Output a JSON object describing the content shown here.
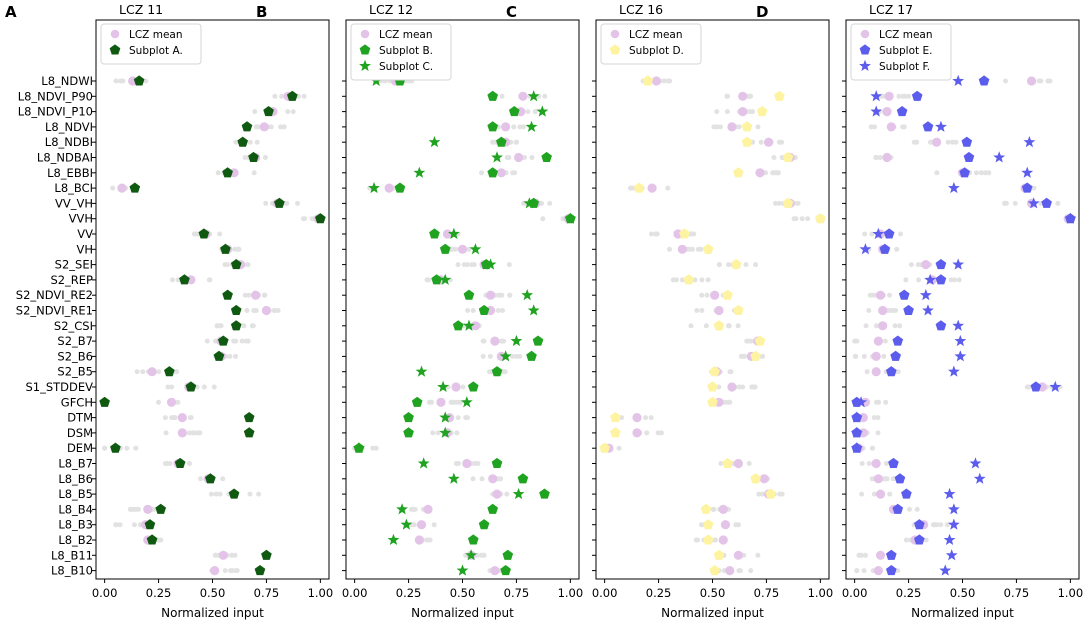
{
  "chart_data": {
    "type": "scatter",
    "x_axis_label": "Normalized input",
    "x_ticks": [
      "0.00",
      "0.25",
      "0.50",
      "0.75",
      "1.00"
    ],
    "xlim": [
      -0.04,
      1.04
    ],
    "features": [
      "L8_NDWI",
      "L8_NDVI_P90",
      "L8_NDVI_P10",
      "L8_NDVI",
      "L8_NDBI",
      "L8_NDBAI",
      "L8_EBBI",
      "L8_BCI",
      "VV_VH",
      "VVH",
      "VV",
      "VH",
      "S2_SEI",
      "S2_REP",
      "S2_NDVI_RE2",
      "S2_NDVI_RE1",
      "S2_CSI",
      "S2_B7",
      "S2_B6",
      "S2_B5",
      "S1_STDDEV",
      "GFCH",
      "DTM",
      "DSM",
      "DEM",
      "L8_B7",
      "L8_B6",
      "L8_B5",
      "L8_B4",
      "L8_B3",
      "L8_B2",
      "L8_B11",
      "L8_B10"
    ],
    "panels": [
      {
        "letter": "A",
        "title": "LCZ 11",
        "legend": [
          {
            "label": "LCZ mean",
            "marker": "circle",
            "color": "#e3c4e8"
          },
          {
            "label": "Subplot A.",
            "marker": "pentagon",
            "color": "#0f5a10"
          }
        ],
        "lcz_mean": [
          0.13,
          0.85,
          0.78,
          0.74,
          0.64,
          0.7,
          0.6,
          0.08,
          0.8,
          0.99,
          0.47,
          0.57,
          0.63,
          0.4,
          0.7,
          0.75,
          0.61,
          0.54,
          0.54,
          0.22,
          0.39,
          0.31,
          0.36,
          0.36,
          0.05,
          0.34,
          0.48,
          0.6,
          0.2,
          0.19,
          0.2,
          0.55,
          0.51
        ],
        "series": [
          {
            "name": "Subplot A.",
            "marker": "pentagon",
            "color": "#0f5a10",
            "values": [
              0.16,
              0.87,
              0.76,
              0.66,
              0.64,
              0.69,
              0.57,
              0.14,
              0.81,
              1.0,
              0.46,
              0.56,
              0.61,
              0.37,
              0.57,
              0.61,
              0.61,
              0.55,
              0.53,
              0.3,
              0.4,
              0.0,
              0.67,
              0.67,
              0.05,
              0.35,
              0.49,
              0.6,
              0.26,
              0.21,
              0.22,
              0.75,
              0.72
            ]
          }
        ]
      },
      {
        "letter": "B",
        "title": "LCZ 12",
        "legend": [
          {
            "label": "LCZ mean",
            "marker": "circle",
            "color": "#e3c4e8"
          },
          {
            "label": "Subplot B.",
            "marker": "pentagon",
            "color": "#20a320"
          },
          {
            "label": "Subplot C.",
            "marker": "star",
            "color": "#20a320"
          }
        ],
        "lcz_mean": [
          0.19,
          0.78,
          0.77,
          0.7,
          0.7,
          0.76,
          0.68,
          0.16,
          0.84,
          0.99,
          0.43,
          0.5,
          0.6,
          0.4,
          0.63,
          0.63,
          0.56,
          0.65,
          0.68,
          0.66,
          0.47,
          0.4,
          0.44,
          0.43,
          0.02,
          0.52,
          0.64,
          0.66,
          0.34,
          0.31,
          0.3,
          0.54,
          0.65
        ],
        "series": [
          {
            "name": "Subplot B.",
            "marker": "pentagon",
            "color": "#20a320",
            "values": [
              0.21,
              0.64,
              0.74,
              0.64,
              0.68,
              0.89,
              0.64,
              0.21,
              0.83,
              1.0,
              0.37,
              0.42,
              0.61,
              0.38,
              0.53,
              0.6,
              0.48,
              0.85,
              0.82,
              0.66,
              0.55,
              0.29,
              0.25,
              0.25,
              0.02,
              0.66,
              0.78,
              0.88,
              0.64,
              0.6,
              0.55,
              0.71,
              0.7
            ]
          },
          {
            "name": "Subplot C.",
            "marker": "star",
            "color": "#20a320",
            "values": [
              0.1,
              0.83,
              0.87,
              0.82,
              0.37,
              0.66,
              0.3,
              0.09,
              0.81,
              1.0,
              0.46,
              0.56,
              0.63,
              0.42,
              0.8,
              0.83,
              0.53,
              0.75,
              0.7,
              0.31,
              0.41,
              0.52,
              0.42,
              0.42,
              0.02,
              0.32,
              0.46,
              0.76,
              0.22,
              0.24,
              0.18,
              0.54,
              0.5
            ]
          }
        ]
      },
      {
        "letter": "C",
        "title": "LCZ 16",
        "legend": [
          {
            "label": "LCZ mean",
            "marker": "circle",
            "color": "#e3c4e8"
          },
          {
            "label": "Subplot D.",
            "marker": "pentagon",
            "color": "#fdf3a0"
          }
        ],
        "lcz_mean": [
          0.24,
          0.64,
          0.64,
          0.59,
          0.76,
          0.86,
          0.72,
          0.22,
          0.86,
          1.0,
          0.34,
          0.36,
          0.61,
          0.39,
          0.51,
          0.53,
          0.53,
          0.71,
          0.68,
          0.52,
          0.59,
          0.53,
          0.15,
          0.15,
          0.02,
          0.62,
          0.74,
          0.76,
          0.55,
          0.56,
          0.55,
          0.62,
          0.58
        ],
        "series": [
          {
            "name": "Subplot D.",
            "marker": "pentagon",
            "color": "#fdf3a0",
            "values": [
              0.2,
              0.81,
              0.73,
              0.66,
              0.66,
              0.85,
              0.62,
              0.16,
              0.85,
              1.0,
              0.37,
              0.48,
              0.61,
              0.39,
              0.57,
              0.62,
              0.53,
              0.72,
              0.7,
              0.51,
              0.5,
              0.5,
              0.05,
              0.05,
              0.0,
              0.57,
              0.7,
              0.77,
              0.47,
              0.48,
              0.48,
              0.53,
              0.51
            ]
          }
        ]
      },
      {
        "letter": "D",
        "title": "LCZ 17",
        "legend": [
          {
            "label": "LCZ mean",
            "marker": "circle",
            "color": "#e3c4e8"
          },
          {
            "label": "Subplot E.",
            "marker": "pentagon",
            "color": "#5c5ced"
          },
          {
            "label": "Subplot F.",
            "marker": "star",
            "color": "#5c5ced"
          }
        ],
        "lcz_mean": [
          0.82,
          0.16,
          0.15,
          0.17,
          0.38,
          0.15,
          0.5,
          0.79,
          0.82,
          0.99,
          0.12,
          0.13,
          0.33,
          0.36,
          0.12,
          0.13,
          0.13,
          0.11,
          0.1,
          0.1,
          0.87,
          0.05,
          0.04,
          0.04,
          0.02,
          0.1,
          0.11,
          0.12,
          0.18,
          0.32,
          0.28,
          0.12,
          0.11
        ],
        "series": [
          {
            "name": "Subplot E.",
            "marker": "pentagon",
            "color": "#5c5ced",
            "values": [
              0.6,
              0.29,
              0.22,
              0.34,
              0.52,
              0.53,
              0.51,
              0.8,
              0.89,
              1.0,
              0.16,
              0.14,
              0.4,
              0.4,
              0.23,
              0.25,
              0.4,
              0.2,
              0.19,
              0.17,
              0.84,
              0.01,
              0.01,
              0.01,
              0.01,
              0.18,
              0.21,
              0.24,
              0.2,
              0.3,
              0.3,
              0.17,
              0.17
            ]
          },
          {
            "name": "Subplot F.",
            "marker": "star",
            "color": "#5c5ced",
            "values": [
              0.48,
              0.1,
              0.1,
              0.4,
              0.81,
              0.67,
              0.8,
              0.46,
              0.83,
              1.0,
              0.11,
              0.05,
              0.48,
              0.35,
              0.33,
              0.34,
              0.48,
              0.49,
              0.49,
              0.46,
              0.93,
              0.03,
              0.01,
              0.01,
              0.01,
              0.56,
              0.58,
              0.44,
              0.46,
              0.46,
              0.44,
              0.45,
              0.42
            ]
          }
        ]
      }
    ]
  }
}
